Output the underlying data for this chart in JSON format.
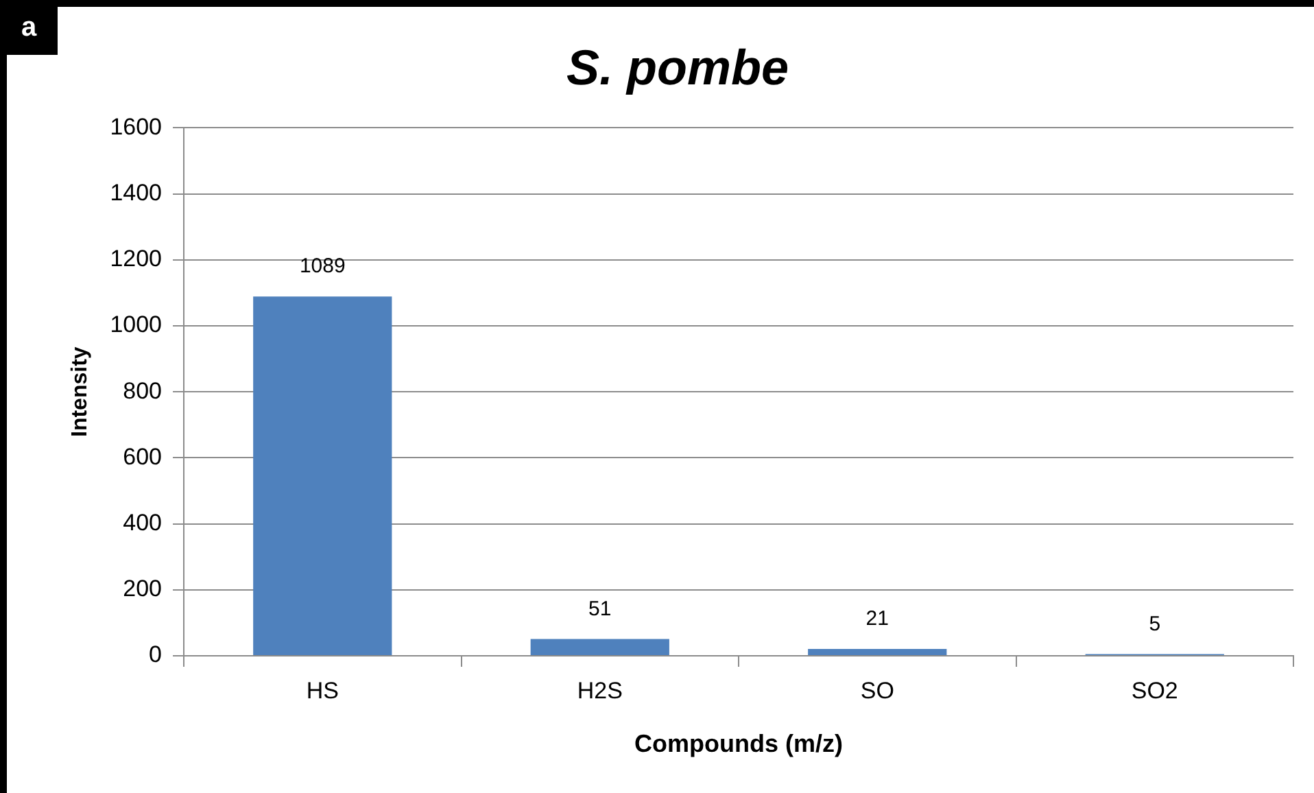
{
  "chart_data": {
    "type": "bar",
    "title": "S. pombe",
    "xlabel": "Compounds (m/z)",
    "ylabel": "Intensity",
    "categories": [
      "HS",
      "H2S",
      "SO",
      "SO2"
    ],
    "values": [
      1089,
      51,
      21,
      5
    ],
    "color": "#4f81bd",
    "ylim": [
      0,
      1600
    ],
    "yticks": [
      0,
      200,
      400,
      600,
      800,
      1000,
      1200,
      1400,
      1600
    ],
    "grid": "y",
    "data_labels": true,
    "legend": false,
    "annotations": [
      "a"
    ]
  }
}
